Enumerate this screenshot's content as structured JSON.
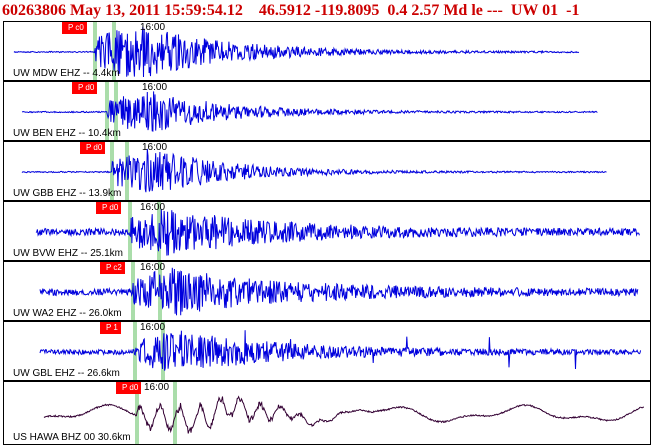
{
  "header": {
    "event_id": "60263806",
    "datetime": "May 13, 2011 15:59:54.12",
    "latitude": "46.5912",
    "longitude": "-119.8095",
    "depth": "0.4",
    "magnitude": "2.57",
    "mag_type": "Md",
    "type": "le",
    "flag": "---",
    "network": "UW",
    "version": "01",
    "extra": "-1"
  },
  "colors": {
    "trace": "#0000dd",
    "trace_broadband": "#330033",
    "pick_tag": "#ff0000",
    "pick_line": "#aaddaa",
    "header_text": "#cc0000"
  },
  "panels": [
    {
      "station": "UW MDW EHZ -- 4.4km",
      "time": "16:00",
      "pick": "P c0",
      "style": "short"
    },
    {
      "station": "UW BEN EHZ -- 10.4km",
      "time": "16:00",
      "pick": "P d0",
      "style": "short"
    },
    {
      "station": "UW GBB EHZ -- 13.9km",
      "time": "16:00",
      "pick": "P d0",
      "style": "short"
    },
    {
      "station": "UW BVW EHZ -- 25.1km",
      "time": "16:00",
      "pick": "P d0",
      "style": "noisy"
    },
    {
      "station": "UW WA2 EHZ -- 26.0km",
      "time": "16:00",
      "pick": "P c2",
      "style": "noisy"
    },
    {
      "station": "UW GBL EHZ -- 26.6km",
      "time": "16:00",
      "pick": "P 1",
      "style": "spiky"
    },
    {
      "station": "US HAWA BHZ 00 30.6km",
      "time": "16:00",
      "pick": "P d0",
      "style": "broadband"
    }
  ]
}
